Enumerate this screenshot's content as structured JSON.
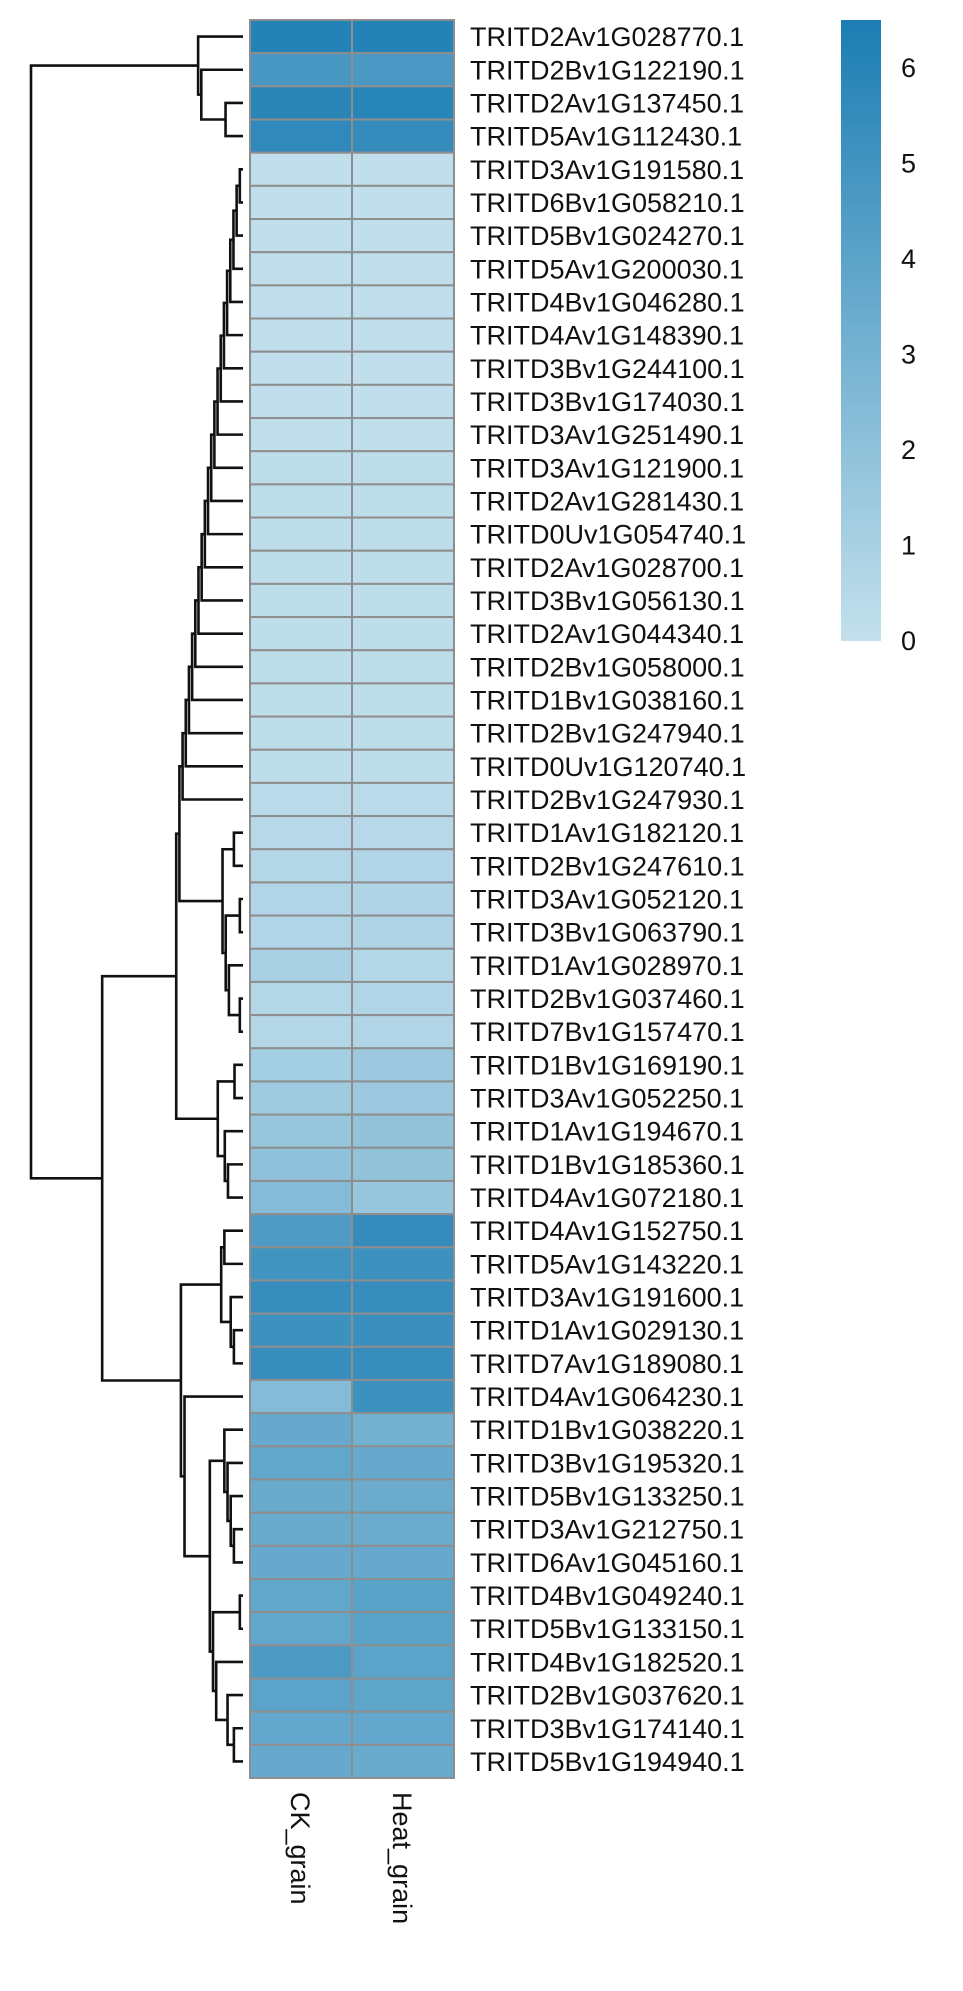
{
  "chart_data": {
    "type": "heatmap",
    "columns": [
      "CK_grain",
      "Heat_grain"
    ],
    "rows": [
      {
        "gene": "TRITD2Av1G028770.1",
        "values": [
          6.2,
          6.2
        ]
      },
      {
        "gene": "TRITD2Bv1G122190.1",
        "values": [
          4.8,
          4.7
        ]
      },
      {
        "gene": "TRITD2Av1G137450.1",
        "values": [
          5.9,
          6.0
        ]
      },
      {
        "gene": "TRITD5Av1G112430.1",
        "values": [
          5.7,
          5.5
        ]
      },
      {
        "gene": "TRITD3Av1G191580.1",
        "values": [
          0.1,
          0.1
        ]
      },
      {
        "gene": "TRITD6Bv1G058210.1",
        "values": [
          0.1,
          0.1
        ]
      },
      {
        "gene": "TRITD5Bv1G024270.1",
        "values": [
          0.1,
          0.1
        ]
      },
      {
        "gene": "TRITD5Av1G200030.1",
        "values": [
          0.1,
          0.1
        ]
      },
      {
        "gene": "TRITD4Bv1G046280.1",
        "values": [
          0.1,
          0.1
        ]
      },
      {
        "gene": "TRITD4Av1G148390.1",
        "values": [
          0.1,
          0.1
        ]
      },
      {
        "gene": "TRITD3Bv1G244100.1",
        "values": [
          0.1,
          0.1
        ]
      },
      {
        "gene": "TRITD3Bv1G174030.1",
        "values": [
          0.1,
          0.1
        ]
      },
      {
        "gene": "TRITD3Av1G251490.1",
        "values": [
          0.1,
          0.1
        ]
      },
      {
        "gene": "TRITD3Av1G121900.1",
        "values": [
          0.2,
          0.2
        ]
      },
      {
        "gene": "TRITD2Av1G281430.1",
        "values": [
          0.2,
          0.2
        ]
      },
      {
        "gene": "TRITD0Uv1G054740.1",
        "values": [
          0.2,
          0.2
        ]
      },
      {
        "gene": "TRITD2Av1G028700.1",
        "values": [
          0.2,
          0.2
        ]
      },
      {
        "gene": "TRITD3Bv1G056130.1",
        "values": [
          0.2,
          0.2
        ]
      },
      {
        "gene": "TRITD2Av1G044340.1",
        "values": [
          0.2,
          0.2
        ]
      },
      {
        "gene": "TRITD2Bv1G058000.1",
        "values": [
          0.2,
          0.2
        ]
      },
      {
        "gene": "TRITD1Bv1G038160.1",
        "values": [
          0.2,
          0.2
        ]
      },
      {
        "gene": "TRITD2Bv1G247940.1",
        "values": [
          0.2,
          0.2
        ]
      },
      {
        "gene": "TRITD0Uv1G120740.1",
        "values": [
          0.2,
          0.2
        ]
      },
      {
        "gene": "TRITD2Bv1G247930.1",
        "values": [
          0.4,
          0.4
        ]
      },
      {
        "gene": "TRITD1Av1G182120.1",
        "values": [
          0.5,
          0.5
        ]
      },
      {
        "gene": "TRITD2Bv1G247610.1",
        "values": [
          0.6,
          0.7
        ]
      },
      {
        "gene": "TRITD3Av1G052120.1",
        "values": [
          0.7,
          0.8
        ]
      },
      {
        "gene": "TRITD3Bv1G063790.1",
        "values": [
          0.7,
          0.8
        ]
      },
      {
        "gene": "TRITD1Av1G028970.1",
        "values": [
          1.0,
          0.6
        ]
      },
      {
        "gene": "TRITD2Bv1G037460.1",
        "values": [
          0.6,
          0.7
        ]
      },
      {
        "gene": "TRITD7Bv1G157470.1",
        "values": [
          0.6,
          0.7
        ]
      },
      {
        "gene": "TRITD1Bv1G169190.1",
        "values": [
          1.2,
          1.5
        ]
      },
      {
        "gene": "TRITD3Av1G052250.1",
        "values": [
          1.4,
          1.5
        ]
      },
      {
        "gene": "TRITD1Av1G194670.1",
        "values": [
          1.7,
          1.9
        ]
      },
      {
        "gene": "TRITD1Bv1G185360.1",
        "values": [
          2.0,
          1.9
        ]
      },
      {
        "gene": "TRITD4Av1G072180.1",
        "values": [
          2.4,
          1.7
        ]
      },
      {
        "gene": "TRITD4Av1G152750.1",
        "values": [
          4.5,
          5.5
        ]
      },
      {
        "gene": "TRITD5Av1G143220.1",
        "values": [
          5.0,
          5.2
        ]
      },
      {
        "gene": "TRITD3Av1G191600.1",
        "values": [
          5.4,
          5.4
        ]
      },
      {
        "gene": "TRITD1Av1G029130.1",
        "values": [
          5.2,
          5.3
        ]
      },
      {
        "gene": "TRITD7Av1G189080.1",
        "values": [
          5.4,
          5.4
        ]
      },
      {
        "gene": "TRITD4Av1G064230.1",
        "values": [
          2.4,
          5.2
        ]
      },
      {
        "gene": "TRITD1Bv1G038220.1",
        "values": [
          3.6,
          3.1
        ]
      },
      {
        "gene": "TRITD3Bv1G195320.1",
        "values": [
          3.8,
          3.6
        ]
      },
      {
        "gene": "TRITD5Bv1G133250.1",
        "values": [
          3.5,
          3.4
        ]
      },
      {
        "gene": "TRITD3Av1G212750.1",
        "values": [
          3.5,
          3.4
        ]
      },
      {
        "gene": "TRITD6Av1G045160.1",
        "values": [
          3.6,
          3.6
        ]
      },
      {
        "gene": "TRITD4Bv1G049240.1",
        "values": [
          3.8,
          4.1
        ]
      },
      {
        "gene": "TRITD5Bv1G133150.1",
        "values": [
          3.8,
          4.1
        ]
      },
      {
        "gene": "TRITD4Bv1G182520.1",
        "values": [
          4.6,
          4.0
        ]
      },
      {
        "gene": "TRITD2Bv1G037620.1",
        "values": [
          4.0,
          3.9
        ]
      },
      {
        "gene": "TRITD3Bv1G174140.1",
        "values": [
          3.7,
          3.7
        ]
      },
      {
        "gene": "TRITD5Bv1G194940.1",
        "values": [
          3.6,
          3.5
        ]
      }
    ],
    "color_scale": {
      "min": 0,
      "max": 6.5,
      "low_color": "#c3e0ec",
      "high_color": "#1b7db3",
      "ticks": [
        0,
        1,
        2,
        3,
        4,
        5,
        6
      ],
      "position": "right"
    },
    "cell_border_color": "#8e8e8e",
    "row_dendrogram": true
  }
}
